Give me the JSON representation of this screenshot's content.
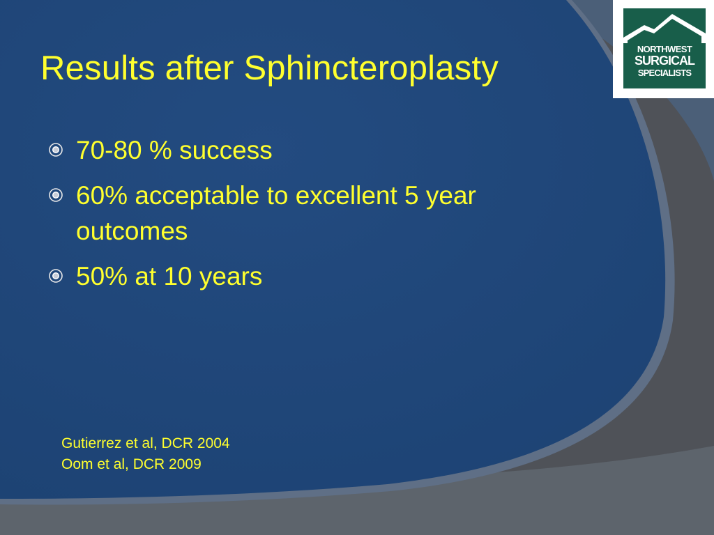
{
  "slide": {
    "title": "Results after Sphincteroplasty",
    "bullets": [
      {
        "text": "70-80 % success"
      },
      {
        "text": "60% acceptable to excellent 5 year outcomes"
      },
      {
        "text": "50% at 10 years"
      }
    ],
    "references": [
      "Gutierrez et al, DCR 2004",
      "Oom et al, DCR 2009"
    ]
  },
  "logo": {
    "line1": "NORTHWEST",
    "line2": "SURGICAL",
    "line3": "SPECIALISTS"
  },
  "colors": {
    "background_blue": "#1f4578",
    "outer_gray": "#4f5258",
    "text_yellow": "#ffff2e",
    "logo_green": "#185e4a"
  },
  "icons": {
    "bullet": "circled-dot-icon",
    "logo": "mountain-logo-icon"
  }
}
